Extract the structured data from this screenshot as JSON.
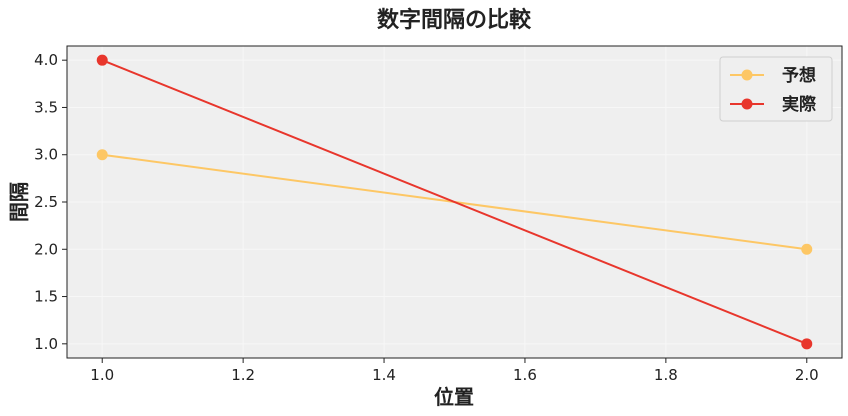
{
  "chart_data": {
    "type": "line",
    "title": "数字間隔の比較",
    "xlabel": "位置",
    "ylabel": "間隔",
    "x": [
      1.0,
      2.0
    ],
    "series": [
      {
        "name": "予想",
        "values": [
          3.0,
          2.0
        ],
        "color": "#fdc765"
      },
      {
        "name": "実際",
        "values": [
          4.0,
          1.0
        ],
        "color": "#e8362c"
      }
    ],
    "xlim": [
      0.95,
      2.05
    ],
    "ylim": [
      0.85,
      4.15
    ],
    "xticks": [
      "1.0",
      "1.2",
      "1.4",
      "1.6",
      "1.8",
      "2.0"
    ],
    "yticks": [
      "1.0",
      "1.5",
      "2.0",
      "2.5",
      "3.0",
      "3.5",
      "4.0"
    ],
    "grid": true,
    "legend_position": "top-right",
    "background": "#efefef"
  }
}
